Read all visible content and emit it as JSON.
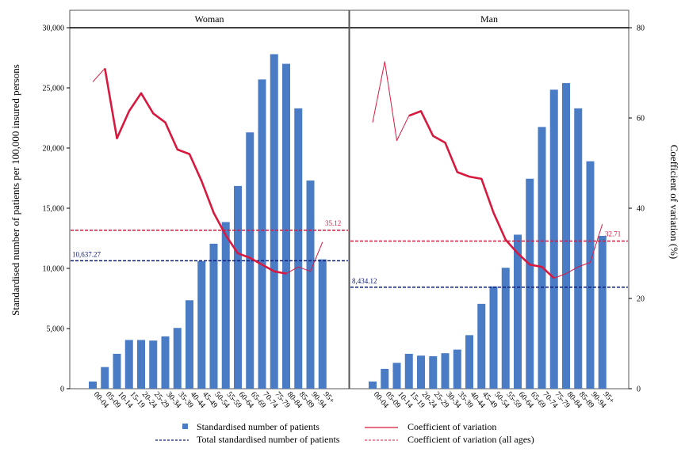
{
  "chart_data": {
    "type": "bar",
    "ylabel_left": "Standardised number of patients per 100,000 insured persons",
    "ylabel_right": "Coefficient of variation (%)",
    "y_left_ticks": [
      "0",
      "5,000",
      "10,000",
      "15,000",
      "20,000",
      "25,000",
      "30,000"
    ],
    "y_right_ticks": [
      "0",
      "20",
      "40",
      "60",
      "80"
    ],
    "ylim_left": [
      0,
      30000
    ],
    "ylim_right": [
      0,
      80
    ],
    "categories": [
      "00-04",
      "05-09",
      "10-14",
      "15-19",
      "20-24",
      "25-29",
      "30-34",
      "35-39",
      "40-44",
      "45-49",
      "50-54",
      "55-59",
      "60-64",
      "65-69",
      "70-74",
      "75-79",
      "80-84",
      "85-89",
      "90-94",
      "95+"
    ],
    "panels": [
      {
        "title": "Woman",
        "bars": [
          600,
          1800,
          2900,
          4050,
          4050,
          4000,
          4350,
          5050,
          7350,
          10600,
          12050,
          13850,
          16850,
          21300,
          25700,
          27800,
          27000,
          23300,
          17300,
          10750
        ],
        "cv": [
          68,
          71,
          55.5,
          61.5,
          65.5,
          61,
          59,
          53,
          52,
          46,
          39,
          34,
          30,
          29,
          27.5,
          26,
          25.5,
          27,
          26,
          32.5
        ],
        "total": 10637.27,
        "total_label": "10,637.27",
        "cv_all": 35.12,
        "cv_all_label": "35.12"
      },
      {
        "title": "Man",
        "bars": [
          600,
          1650,
          2150,
          2900,
          2750,
          2700,
          2950,
          3250,
          4450,
          7050,
          8500,
          10050,
          12800,
          17450,
          21750,
          24850,
          25400,
          23300,
          18900,
          12700
        ],
        "cv": [
          59,
          72.5,
          55,
          60.5,
          61.5,
          56,
          54.5,
          48,
          47,
          46.5,
          39,
          33,
          30,
          27.5,
          27,
          24.5,
          25.5,
          27,
          28,
          36.5
        ],
        "total": 8434.12,
        "total_label": "8,434.12",
        "cv_all": 32.71,
        "cv_all_label": "32.71"
      }
    ],
    "legend": [
      {
        "label": "Standardised number of patients",
        "kind": "bar"
      },
      {
        "label": "Coefficient of variation",
        "kind": "line"
      },
      {
        "label": "Total standardised number of patients",
        "kind": "dash-navy"
      },
      {
        "label": "Coefficient of variation (all ages)",
        "kind": "dash-red"
      }
    ],
    "colors": {
      "bar": "#4a7cc6",
      "cv_line": "#d7193f",
      "total_line": "#0b1b7a",
      "cv_all_line": "#d7193f"
    }
  }
}
